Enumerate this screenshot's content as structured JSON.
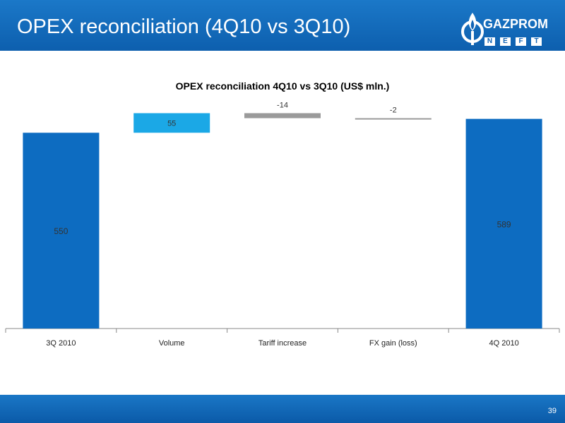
{
  "slide": {
    "title": "OPEX reconciliation (4Q10 vs 3Q10)",
    "page_number": "39"
  },
  "logo": {
    "word": "GAZPROM",
    "sub_letters": [
      "N",
      "E",
      "F",
      "T"
    ],
    "icon": "flame-icon"
  },
  "colors": {
    "header_bg": "#1063b5",
    "total_bar": "#0d6cc1",
    "increase_bar": "#1ba8e6",
    "decrease_bar": "#9a9a9a"
  },
  "chart_data": {
    "type": "bar",
    "title": "OPEX reconciliation 4Q10 vs 3Q10 (US$ mln.)",
    "subtype": "waterfall",
    "categories": [
      "3Q 2010",
      "Volume",
      "Tariff increase",
      "FX gain (loss)",
      "4Q 2010"
    ],
    "values": [
      550,
      55,
      -14,
      -2,
      589
    ],
    "labels": [
      "550",
      "55",
      "-14",
      "-2",
      "589"
    ],
    "kinds": [
      "total",
      "increase",
      "decrease",
      "decrease",
      "total"
    ],
    "xlabel": "",
    "ylabel": "",
    "ylim": [
      0,
      610
    ],
    "grid": false,
    "legend": "none"
  }
}
